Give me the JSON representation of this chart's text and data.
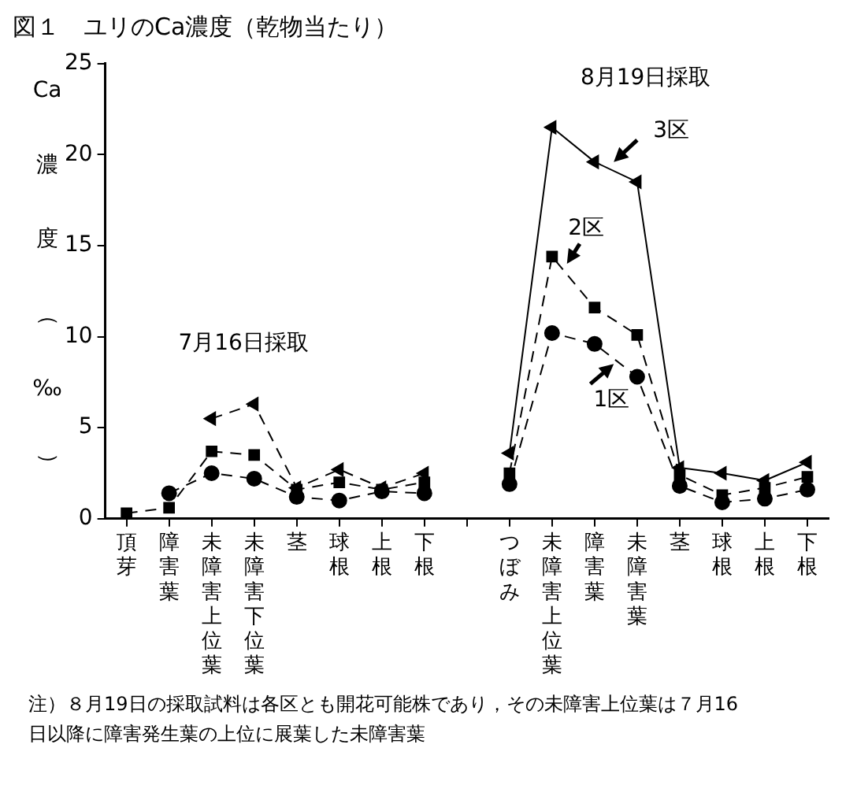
{
  "chart_data": {
    "type": "line",
    "title": "図１　ユリのCa濃度（乾物当たり）",
    "ylabel": "Ca濃度（‰）",
    "categories": [
      "頂芽",
      "障害葉",
      "未障害上位葉",
      "未障害下位葉",
      "茎",
      "球根",
      "上根",
      "下根",
      null,
      "つぼみ",
      "未障害上位葉",
      "障害葉",
      "未障害葉",
      "茎",
      "球根",
      "上根",
      "下根"
    ],
    "series": [
      {
        "color": "#000000",
        "marker": "circle",
        "line_style": "dashed",
        "values": [
          null,
          1.4,
          2.5,
          2.2,
          1.2,
          1.0,
          1.5,
          1.4,
          null,
          null,
          null,
          null,
          null,
          null,
          null,
          null,
          null
        ]
      },
      {
        "color": "#000000",
        "marker": "square",
        "line_style": "dashed",
        "values": [
          0.3,
          0.6,
          3.7,
          3.5,
          1.6,
          2.0,
          1.6,
          2.0,
          null,
          null,
          null,
          null,
          null,
          null,
          null,
          null,
          null
        ]
      },
      {
        "color": "#000000",
        "marker": "triangle",
        "line_style": "dashed",
        "values": [
          null,
          null,
          5.5,
          6.3,
          1.7,
          2.7,
          1.7,
          2.5,
          null,
          null,
          null,
          null,
          null,
          null,
          null,
          null,
          null
        ]
      },
      {
        "color": "#000000",
        "marker": "circle",
        "line_style": "dashed",
        "values": [
          null,
          null,
          null,
          null,
          null,
          null,
          null,
          null,
          null,
          1.9,
          10.2,
          9.6,
          7.8,
          1.8,
          0.9,
          1.1,
          1.6
        ]
      },
      {
        "color": "#000000",
        "marker": "square",
        "line_style": "dashed",
        "values": [
          null,
          null,
          null,
          null,
          null,
          null,
          null,
          null,
          null,
          2.5,
          14.4,
          11.6,
          10.1,
          2.4,
          1.3,
          1.7,
          2.3
        ]
      },
      {
        "color": "#000000",
        "marker": "triangle",
        "line_style": "solid",
        "values": [
          null,
          null,
          null,
          null,
          null,
          null,
          null,
          null,
          null,
          3.6,
          21.5,
          19.6,
          18.5,
          2.8,
          2.5,
          2.1,
          3.1
        ]
      }
    ],
    "ylim": [
      0,
      25
    ],
    "yticks": [
      0,
      5,
      10,
      15,
      20,
      25
    ],
    "grid": false,
    "legend": false,
    "annotations": [
      "7月16日採取",
      "8月19日採取",
      "3区",
      "2区",
      "1区",
      "注）８月19日の採取試料は各区とも開花可能株であり，その未障害上位葉は７月16日以降に障害発生葉の上位に展葉した未障害葉"
    ]
  }
}
